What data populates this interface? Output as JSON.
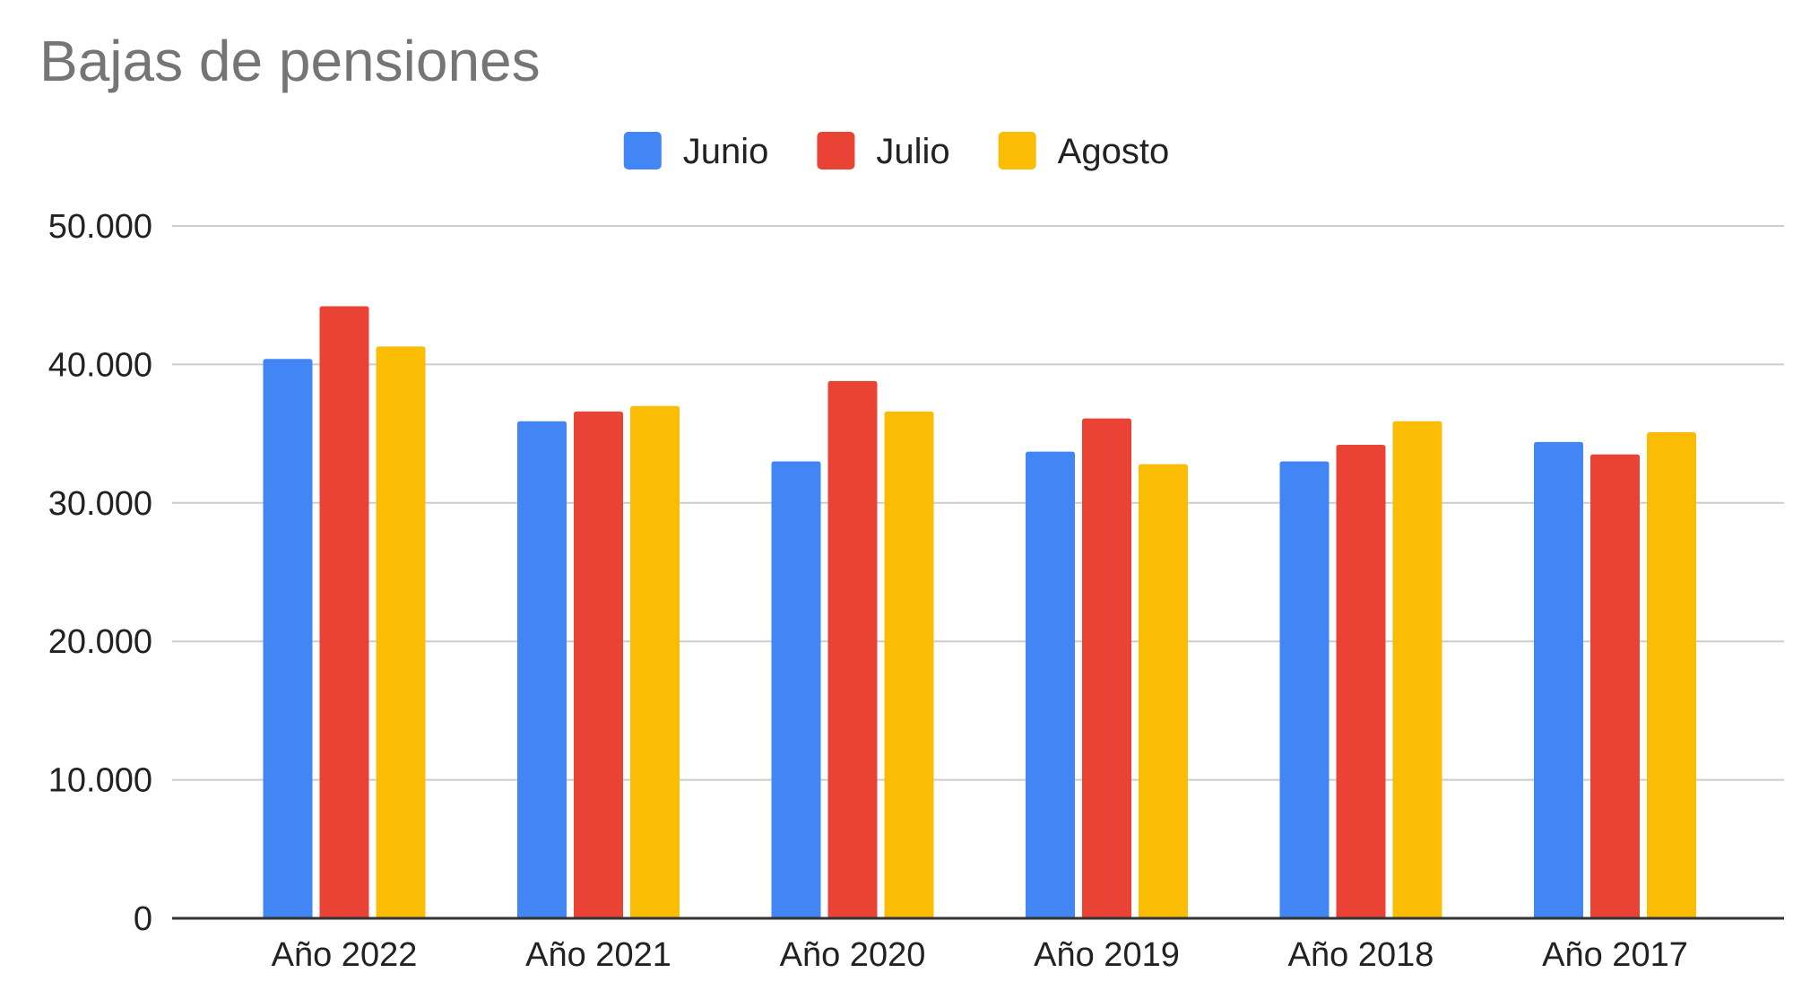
{
  "chart_data": {
    "type": "bar",
    "title": "Bajas de pensiones",
    "xlabel": "",
    "ylabel": "",
    "categories": [
      "Año 2022",
      "Año 2021",
      "Año 2020",
      "Año 2019",
      "Año 2018",
      "Año 2017"
    ],
    "series": [
      {
        "name": "Junio",
        "color": "#4285f4",
        "values": [
          40400,
          35900,
          33000,
          33700,
          33000,
          34400
        ]
      },
      {
        "name": "Julio",
        "color": "#ea4335",
        "values": [
          44200,
          36600,
          38800,
          36100,
          34200,
          33500
        ]
      },
      {
        "name": "Agosto",
        "color": "#fbbc04",
        "values": [
          41300,
          37000,
          36600,
          32800,
          35900,
          35100
        ]
      }
    ],
    "ylim": [
      0,
      50000
    ],
    "y_ticks": [
      0,
      10000,
      20000,
      30000,
      40000,
      50000
    ],
    "y_tick_labels": [
      "0",
      "10.000",
      "20.000",
      "30.000",
      "40.000",
      "50.000"
    ],
    "grid": true,
    "legend_position": "top"
  }
}
